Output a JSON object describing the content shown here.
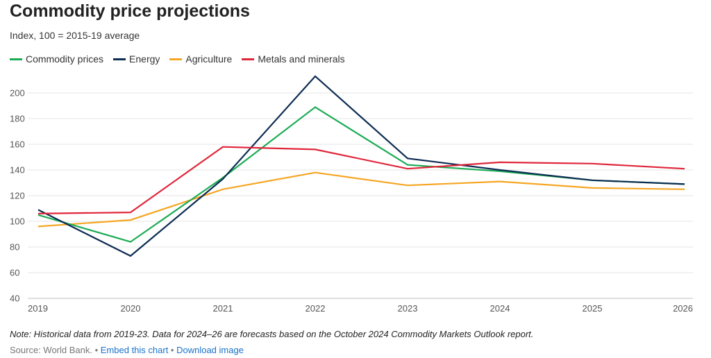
{
  "header": {
    "title": "Commodity price projections",
    "subtitle": "Index, 100 = 2015-19 average"
  },
  "chart_data": {
    "type": "line",
    "x": [
      "2019",
      "2020",
      "2021",
      "2022",
      "2023",
      "2024",
      "2025",
      "2026"
    ],
    "ylim": [
      40,
      210
    ],
    "yticks": [
      40,
      60,
      80,
      100,
      120,
      140,
      160,
      180,
      200
    ],
    "grid": "horizontal",
    "legend_position": "top-left",
    "series": [
      {
        "name": "Commodity prices",
        "color": "#1aab53",
        "values": [
          105,
          84,
          134,
          189,
          144,
          139,
          132,
          129
        ]
      },
      {
        "name": "Energy",
        "color": "#0c2c52",
        "values": [
          109,
          73,
          133,
          213,
          149,
          140,
          132,
          129
        ]
      },
      {
        "name": "Agriculture",
        "color": "#f5a623",
        "values": [
          96,
          101,
          125,
          138,
          128,
          131,
          126,
          125
        ]
      },
      {
        "name": "Metals and minerals",
        "color": "#e0253a",
        "values": [
          106,
          107,
          158,
          156,
          141,
          146,
          145,
          141
        ]
      }
    ]
  },
  "footer": {
    "note": "Note: Historical data from 2019-23. Data for 2024–26 are forecasts based on the October 2024 Commodity Markets Outlook report.",
    "source": "Source: World Bank.",
    "separator": " • ",
    "embed_link": "Embed this chart",
    "download_link": "Download image"
  }
}
